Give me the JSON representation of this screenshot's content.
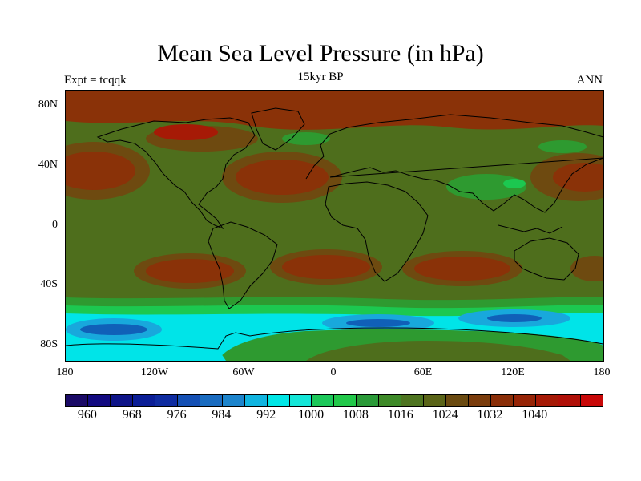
{
  "header": {
    "title": "Mean Sea Level Pressure (in hPa)",
    "subtitle": "15kyr BP",
    "left_label": "Expt = tcqqk",
    "right_label": "ANN"
  },
  "axes": {
    "lat_labels": [
      "80N",
      "40N",
      "0",
      "40S",
      "80S"
    ],
    "lon_labels": [
      "180",
      "120W",
      "60W",
      "0",
      "60E",
      "120E",
      "180"
    ]
  },
  "legend": {
    "labels": [
      "960",
      "968",
      "976",
      "984",
      "992",
      "1000",
      "1008",
      "1016",
      "1024",
      "1032",
      "1040"
    ],
    "colors": [
      "#1a0a66",
      "#120a80",
      "#0e1488",
      "#0b1e96",
      "#0f2ca0",
      "#1450b4",
      "#1a6cc0",
      "#1c84cc",
      "#10b4e0",
      "#00e6e6",
      "#14e6d8",
      "#1cc85a",
      "#22c84a",
      "#2a9a38",
      "#3e8a28",
      "#4e7420",
      "#5a6418",
      "#6a4a10",
      "#7a3c0c",
      "#8a2e08",
      "#962406",
      "#a61a06",
      "#b01008",
      "#c80808"
    ]
  },
  "map": {
    "colors": {
      "ocean_land_mid": "#4e6e1c",
      "high": "#8a3208",
      "mid_high": "#6e4a10",
      "low_green": "#2e9a30",
      "bright_green": "#1cc850",
      "cyan": "#00e4e8",
      "blue_light": "#18a8dc",
      "blue": "#1060b8",
      "coast": "#000000"
    }
  }
}
